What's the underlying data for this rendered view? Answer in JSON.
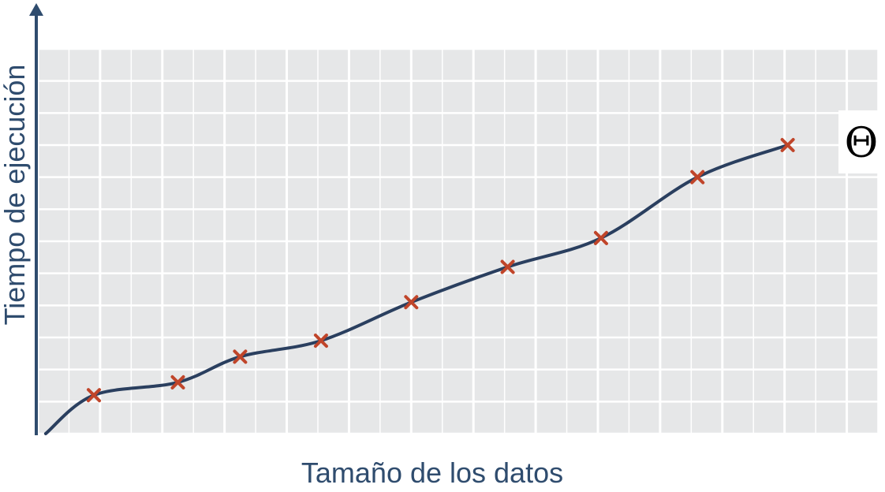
{
  "chart_data": {
    "type": "line",
    "xlabel": "Tamaño de los datos",
    "ylabel": "Tiempo de ejecución",
    "annotation": "Θ",
    "grid": true,
    "ticks_labeled": false,
    "x": [
      1.8,
      4.5,
      6.5,
      9.1,
      12.0,
      15.1,
      18.1,
      21.2,
      24.1
    ],
    "series": [
      {
        "marker": "x",
        "values": [
          1.2,
          1.6,
          2.4,
          2.9,
          4.1,
          5.2,
          6.1,
          8.0,
          9.0
        ]
      }
    ],
    "xlim": [
      0,
      27
    ],
    "ylim": [
      0,
      12
    ],
    "colors": {
      "plot_background": "#e6e7e8",
      "grid": "#ffffff",
      "axis": "#2f4c6e",
      "curve": "#2a3f5f",
      "marker": "#c0452a",
      "label_text": "#2f4c6e"
    }
  }
}
